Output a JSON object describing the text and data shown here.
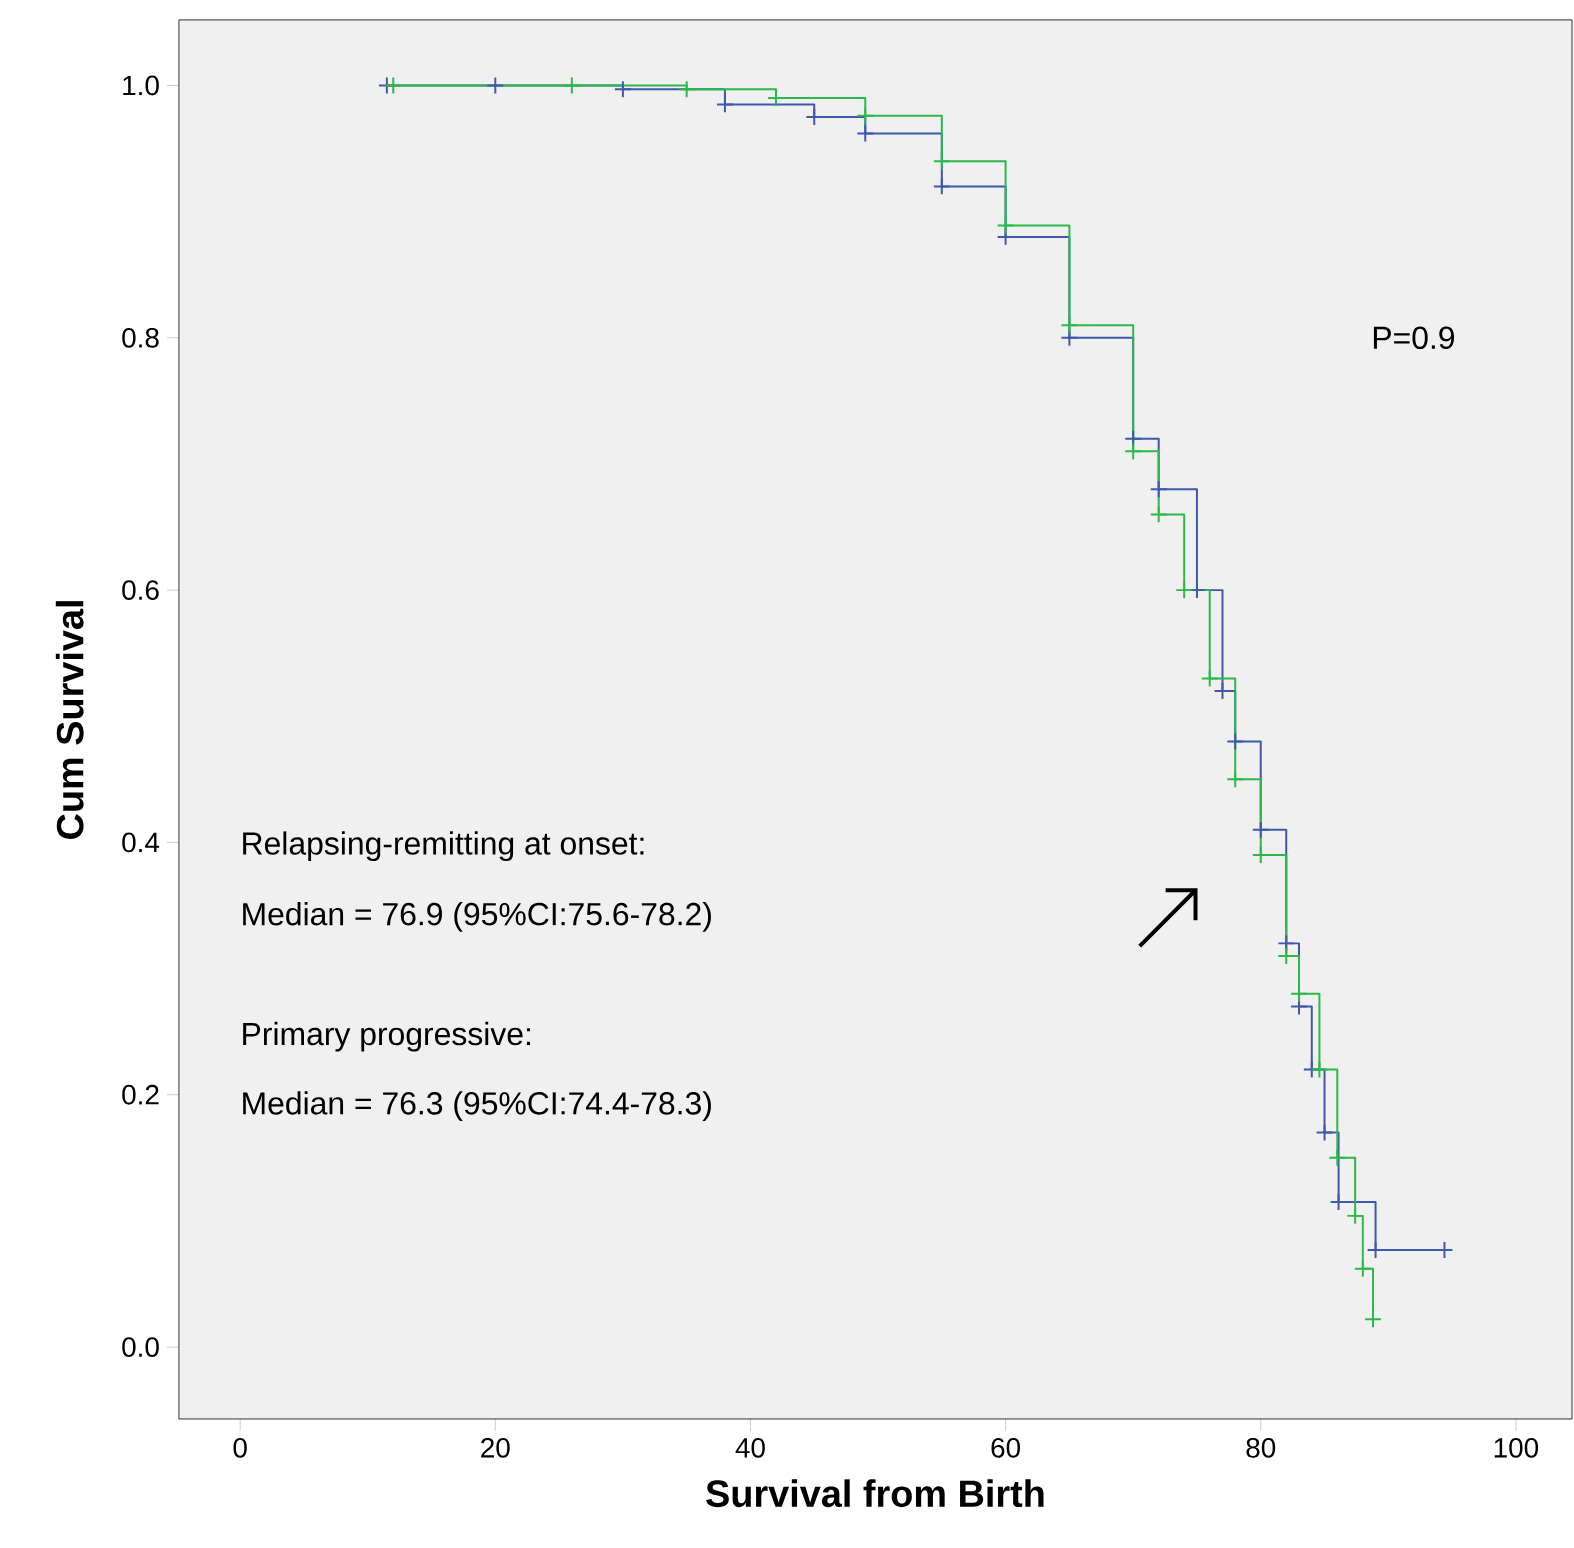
{
  "chart_data": {
    "type": "step",
    "xlabel": "Survival from Birth",
    "ylabel": "Cum Survival",
    "xlim": [
      -4.8,
      104.4
    ],
    "ylim": [
      -0.057,
      1.052
    ],
    "xticks": [
      0,
      20,
      40,
      60,
      80,
      100
    ],
    "yticks": [
      {
        "value": 0,
        "label": "0.0"
      },
      {
        "value": 0.2,
        "label": "0.2"
      },
      {
        "value": 0.4,
        "label": "0.4"
      },
      {
        "value": 0.6,
        "label": "0.6"
      },
      {
        "value": 0.8,
        "label": "0.8"
      },
      {
        "value": 1,
        "label": "1.0"
      }
    ],
    "marker": "cross",
    "series": [
      {
        "color": "#3f58aa",
        "x": [
          11.5,
          20,
          30,
          38,
          45,
          49,
          55,
          60,
          65,
          70,
          72,
          75,
          77,
          78,
          80,
          82,
          83,
          84,
          85,
          86.1,
          89,
          94.4
        ],
        "values": [
          1.0,
          1.0,
          0.997,
          0.985,
          0.975,
          0.962,
          0.92,
          0.88,
          0.8,
          0.72,
          0.68,
          0.6,
          0.52,
          0.48,
          0.41,
          0.32,
          0.27,
          0.22,
          0.17,
          0.115,
          0.077,
          0.077
        ]
      },
      {
        "color": "#2db84a",
        "x": [
          12,
          26,
          35,
          42,
          49,
          55,
          60,
          65,
          70,
          72,
          74,
          76,
          78,
          80,
          82,
          83,
          84.6,
          86,
          87.4,
          88,
          88.8
        ],
        "values": [
          1.0,
          1.0,
          0.997,
          0.99,
          0.976,
          0.94,
          0.889,
          0.81,
          0.71,
          0.66,
          0.6,
          0.53,
          0.45,
          0.39,
          0.31,
          0.28,
          0.22,
          0.15,
          0.104,
          0.062,
          0.022
        ]
      }
    ],
    "annotations": [
      "P=0.9",
      "Relapsing-remitting at onset:",
      "Median = 76.9 (95%CI:75.6-78.2)",
      "Primary progressive:",
      "Median = 76.3 (95%CI:74.4-78.3)"
    ]
  }
}
